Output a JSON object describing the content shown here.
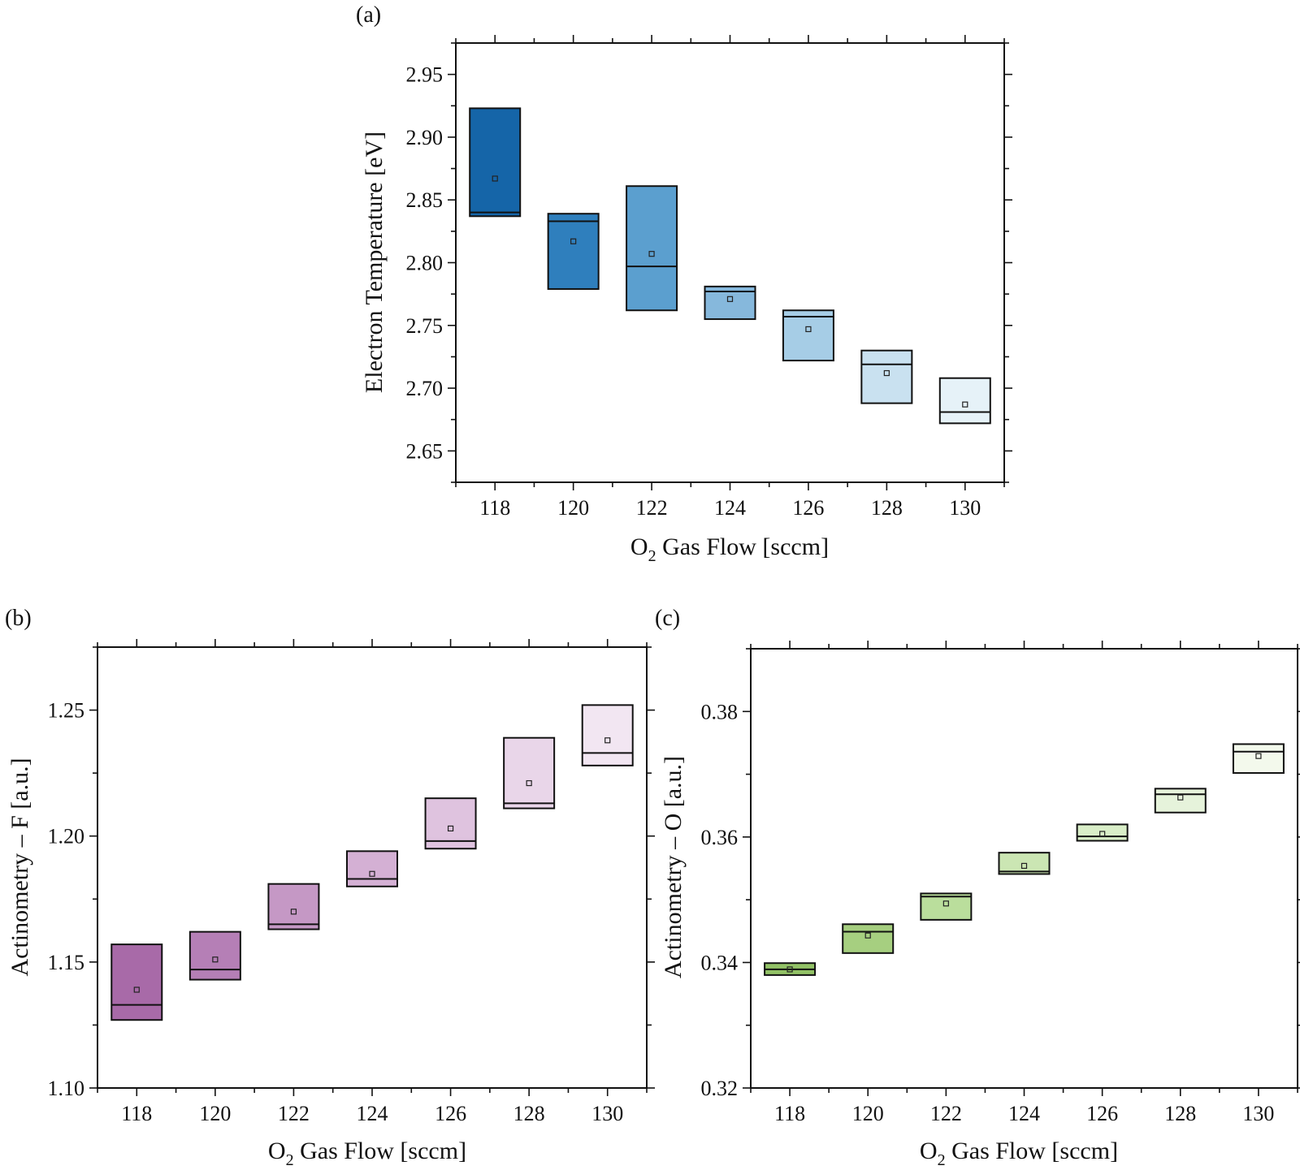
{
  "chart_data": [
    {
      "id": "a",
      "type": "box",
      "panel_label": "(a)",
      "xlabel_main": "O",
      "xlabel_sub": "2",
      "xlabel_rest": " Gas Flow [sccm]",
      "ylabel": "Electron Temperature [eV]",
      "categories": [
        "118",
        "120",
        "122",
        "124",
        "126",
        "128",
        "130"
      ],
      "xlim": [
        117,
        131
      ],
      "ylim": [
        2.625,
        2.975
      ],
      "yticks": [
        2.65,
        2.7,
        2.75,
        2.8,
        2.85,
        2.9,
        2.95
      ],
      "ytick_labels": [
        "2.65",
        "2.70",
        "2.75",
        "2.80",
        "2.85",
        "2.90",
        "2.95"
      ],
      "colors": [
        "#1565a8",
        "#2f7fbd",
        "#5b9fcf",
        "#86b8dc",
        "#a6cde6",
        "#c9e1f0",
        "#e6f2f8"
      ],
      "boxes": [
        {
          "x": 118,
          "low": 2.837,
          "high": 2.923,
          "median": 2.84,
          "mean": 2.867
        },
        {
          "x": 120,
          "low": 2.779,
          "high": 2.839,
          "median": 2.833,
          "mean": 2.817
        },
        {
          "x": 122,
          "low": 2.762,
          "high": 2.861,
          "median": 2.797,
          "mean": 2.807
        },
        {
          "x": 124,
          "low": 2.755,
          "high": 2.781,
          "median": 2.777,
          "mean": 2.771
        },
        {
          "x": 126,
          "low": 2.722,
          "high": 2.762,
          "median": 2.757,
          "mean": 2.747
        },
        {
          "x": 128,
          "low": 2.688,
          "high": 2.73,
          "median": 2.719,
          "mean": 2.712
        },
        {
          "x": 130,
          "low": 2.672,
          "high": 2.708,
          "median": 2.681,
          "mean": 2.687
        }
      ]
    },
    {
      "id": "b",
      "type": "box",
      "panel_label": "(b)",
      "xlabel_main": "O",
      "xlabel_sub": "2",
      "xlabel_rest": " Gas Flow [sccm]",
      "ylabel": "Actinometry – F [a.u.]",
      "categories": [
        "118",
        "120",
        "122",
        "124",
        "126",
        "128",
        "130"
      ],
      "xlim": [
        117,
        131
      ],
      "ylim": [
        1.1,
        1.275
      ],
      "yticks": [
        1.1,
        1.15,
        1.2,
        1.25
      ],
      "ytick_labels": [
        "1.10",
        "1.15",
        "1.20",
        "1.25"
      ],
      "colors": [
        "#a86aa8",
        "#b57fb6",
        "#c598c5",
        "#d4b0d4",
        "#dfc3df",
        "#e9d6e9",
        "#f2e6f2"
      ],
      "boxes": [
        {
          "x": 118,
          "low": 1.127,
          "high": 1.157,
          "median": 1.133,
          "mean": 1.139
        },
        {
          "x": 120,
          "low": 1.143,
          "high": 1.162,
          "median": 1.147,
          "mean": 1.151
        },
        {
          "x": 122,
          "low": 1.163,
          "high": 1.181,
          "median": 1.165,
          "mean": 1.17
        },
        {
          "x": 124,
          "low": 1.18,
          "high": 1.194,
          "median": 1.183,
          "mean": 1.185
        },
        {
          "x": 126,
          "low": 1.195,
          "high": 1.215,
          "median": 1.198,
          "mean": 1.203
        },
        {
          "x": 128,
          "low": 1.211,
          "high": 1.239,
          "median": 1.213,
          "mean": 1.221
        },
        {
          "x": 130,
          "low": 1.228,
          "high": 1.252,
          "median": 1.233,
          "mean": 1.238
        }
      ]
    },
    {
      "id": "c",
      "type": "box",
      "panel_label": "(c)",
      "xlabel_main": "O",
      "xlabel_sub": "2",
      "xlabel_rest": " Gas Flow [sccm]",
      "ylabel": "Actinometry – O [a.u.]",
      "categories": [
        "118",
        "120",
        "122",
        "124",
        "126",
        "128",
        "130"
      ],
      "xlim": [
        117,
        131
      ],
      "ylim": [
        0.32,
        0.39
      ],
      "yticks": [
        0.32,
        0.34,
        0.36,
        0.38
      ],
      "ytick_labels": [
        "0.32",
        "0.34",
        "0.36",
        "0.38"
      ],
      "colors": [
        "#93c367",
        "#a6cf80",
        "#bade9c",
        "#cbe6b3",
        "#d9eec8",
        "#e6f3db",
        "#f3f9ec"
      ],
      "boxes": [
        {
          "x": 118,
          "low": 0.338,
          "high": 0.3399,
          "median": 0.3389,
          "mean": 0.3389
        },
        {
          "x": 120,
          "low": 0.3415,
          "high": 0.3461,
          "median": 0.3449,
          "mean": 0.3443
        },
        {
          "x": 122,
          "low": 0.3468,
          "high": 0.351,
          "median": 0.3505,
          "mean": 0.3494
        },
        {
          "x": 124,
          "low": 0.3541,
          "high": 0.3575,
          "median": 0.3545,
          "mean": 0.3554
        },
        {
          "x": 126,
          "low": 0.3594,
          "high": 0.362,
          "median": 0.3601,
          "mean": 0.3605
        },
        {
          "x": 128,
          "low": 0.3639,
          "high": 0.3677,
          "median": 0.3668,
          "mean": 0.3663
        },
        {
          "x": 130,
          "low": 0.3702,
          "high": 0.3748,
          "median": 0.3736,
          "mean": 0.3729
        }
      ]
    }
  ]
}
